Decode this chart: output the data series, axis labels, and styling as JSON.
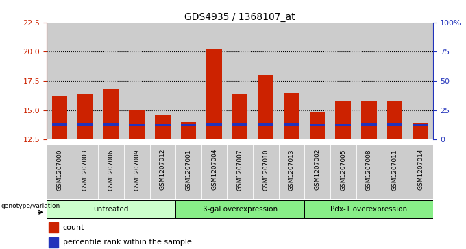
{
  "title": "GDS4935 / 1368107_at",
  "samples": [
    "GSM1207000",
    "GSM1207003",
    "GSM1207006",
    "GSM1207009",
    "GSM1207012",
    "GSM1207001",
    "GSM1207004",
    "GSM1207007",
    "GSM1207010",
    "GSM1207013",
    "GSM1207002",
    "GSM1207005",
    "GSM1207008",
    "GSM1207011",
    "GSM1207014"
  ],
  "count_values": [
    16.2,
    16.4,
    16.8,
    15.0,
    14.6,
    14.0,
    20.2,
    16.4,
    18.0,
    16.5,
    14.8,
    15.8,
    15.8,
    15.8,
    13.9
  ],
  "percentile_values": [
    13.8,
    13.8,
    13.8,
    13.7,
    13.7,
    13.7,
    13.8,
    13.8,
    13.8,
    13.8,
    13.7,
    13.7,
    13.8,
    13.8,
    13.7
  ],
  "ylim": [
    12.5,
    22.5
  ],
  "yticks": [
    12.5,
    15.0,
    17.5,
    20.0,
    22.5
  ],
  "right_yticks_vals": [
    0,
    25,
    50,
    75,
    100
  ],
  "right_yticks_labels": [
    "0",
    "25",
    "50",
    "75",
    "100%"
  ],
  "bar_color": "#cc2200",
  "percentile_color": "#2233bb",
  "bar_width": 0.6,
  "bg_color": "#cccccc",
  "plot_bg": "#ffffff",
  "left_tick_color": "#cc2200",
  "right_tick_color": "#2233bb",
  "genotype_label": "genotype/variation",
  "legend_count": "count",
  "legend_percentile": "percentile rank within the sample",
  "groups": [
    {
      "start": 0,
      "end": 4,
      "label": "untreated",
      "color": "#ccffcc"
    },
    {
      "start": 5,
      "end": 9,
      "label": "β-gal overexpression",
      "color": "#88ee88"
    },
    {
      "start": 10,
      "end": 14,
      "label": "Pdx-1 overexpression",
      "color": "#88ee88"
    }
  ]
}
